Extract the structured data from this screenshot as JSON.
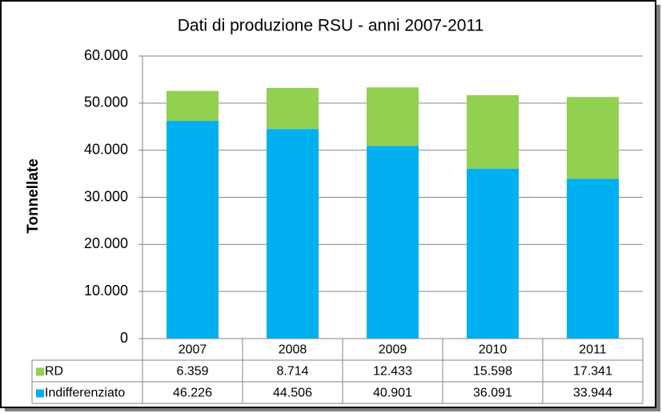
{
  "chart_data": {
    "type": "stacked-bar",
    "title": "Dati di produzione RSU - anni 2007-2011",
    "y_label": "Tonnellate",
    "categories": [
      "2007",
      "2008",
      "2009",
      "2010",
      "2011"
    ],
    "series": [
      {
        "name": "RD",
        "color": "#92d050",
        "values": [
          6359,
          8714,
          12433,
          15598,
          17341
        ],
        "value_labels": [
          "6.359",
          "8.714",
          "12.433",
          "15.598",
          "17.341"
        ]
      },
      {
        "name": "Indifferenziato",
        "color": "#00b0f0",
        "values": [
          46226,
          44506,
          40901,
          36091,
          33944
        ],
        "value_labels": [
          "46.226",
          "44.506",
          "40.901",
          "36.091",
          "33.944"
        ]
      }
    ],
    "ylim": [
      0,
      60000
    ],
    "yticks": [
      0,
      {
        "value": 10000,
        "label": "10.000"
      },
      {
        "value": 20000,
        "label": "20.000"
      },
      {
        "value": 30000,
        "label": "30.000"
      },
      {
        "value": 40000,
        "label": "40.000"
      },
      {
        "value": 50000,
        "label": "50.000"
      },
      {
        "value": 60000,
        "label": "60.000"
      }
    ],
    "grid": true
  }
}
